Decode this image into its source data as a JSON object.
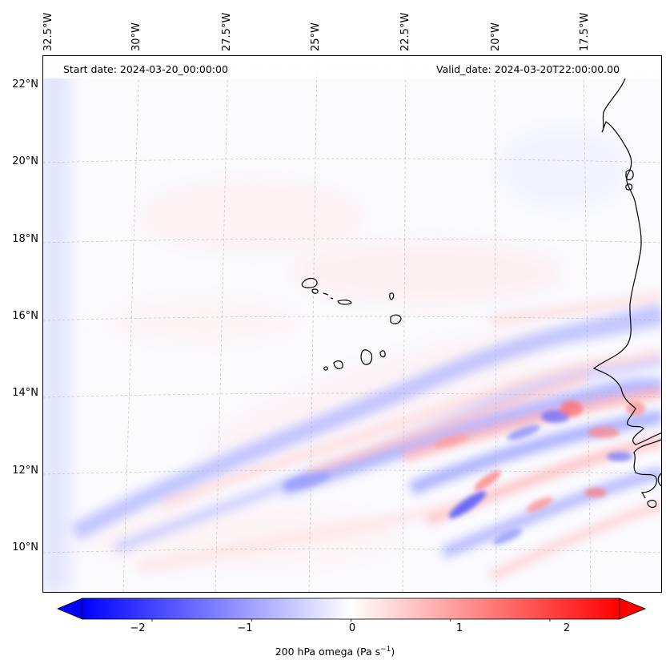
{
  "header": {
    "start_date": "Start date: 2024-03-20_00:00:00",
    "valid_date": "Valid_date: 2024-03-20T22:00:00.00"
  },
  "axes": {
    "longitude_labels": [
      "32.5°W",
      "30°W",
      "27.5°W",
      "25°W",
      "22.5°W",
      "20°W",
      "17.5°W"
    ],
    "latitude_labels": [
      "22°N",
      "20°N",
      "18°N",
      "16°N",
      "14°N",
      "12°N",
      "10°N"
    ]
  },
  "colorbar": {
    "ticks": [
      "−2",
      "−1",
      "0",
      "1",
      "2"
    ],
    "label_text": "200 hPa omega (Pa s",
    "label_exp": "−1",
    "label_close": ")",
    "min": -2.7,
    "max": 2.7,
    "cmap": "bwr"
  },
  "colors": {
    "negative": "#0000ff",
    "neutral": "#ffffff",
    "positive": "#ff0000",
    "coastline": "#000000",
    "gridline": "#b0b0b0"
  },
  "map": {
    "field": "200 hPa omega",
    "projection": "Lambert conformal",
    "features": [
      "coastline",
      "cape-verde-islands",
      "gridlines"
    ]
  }
}
